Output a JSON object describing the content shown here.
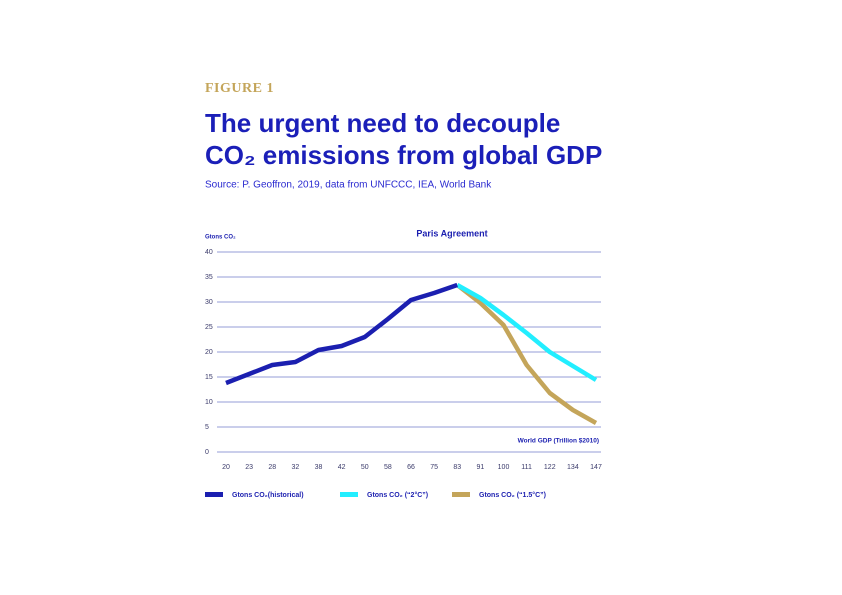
{
  "chart_data": {
    "type": "line",
    "figure_label": "FIGURE 1",
    "title": [
      "The urgent need to decouple",
      "CO₂ emissions from global GDP"
    ],
    "subtitle": "Source: P. Geoffron, 2019, data from UNFCCC, IEA, World Bank",
    "y_label": "Gtons CO₂",
    "x_label": "World GDP (Trillion $2010)",
    "annotation": "Paris Agreement",
    "categories": [
      "20",
      "23",
      "28",
      "32",
      "38",
      "42",
      "50",
      "58",
      "66",
      "75",
      "83",
      "91",
      "100",
      "111",
      "122",
      "134",
      "147"
    ],
    "series": [
      {
        "name": "Gtons CO₂(historical)",
        "color": "#1b1fb0",
        "values": [
          13.8,
          15.6,
          17.4,
          18,
          20.4,
          21.2,
          23,
          26.6,
          30.4,
          31.8,
          33.4,
          null,
          null,
          null,
          null,
          null,
          null
        ]
      },
      {
        "name": "Gtons CO₂ (“2°C”)",
        "color": "#22eeff",
        "values": [
          null,
          null,
          null,
          null,
          null,
          null,
          null,
          null,
          null,
          null,
          33.4,
          30.8,
          27.4,
          23.8,
          20,
          17.2,
          14.4
        ]
      },
      {
        "name": "Gtons CO₂ (“1.5°C”)",
        "color": "#c4a55a",
        "values": [
          null,
          null,
          null,
          null,
          null,
          null,
          null,
          null,
          null,
          null,
          33.4,
          29.8,
          25.4,
          17.4,
          11.8,
          8.4,
          5.8
        ]
      }
    ],
    "ylim": [
      0,
      40
    ],
    "yticks": [
      0,
      5,
      10,
      15,
      20,
      25,
      30,
      35,
      40
    ],
    "grid": true
  }
}
